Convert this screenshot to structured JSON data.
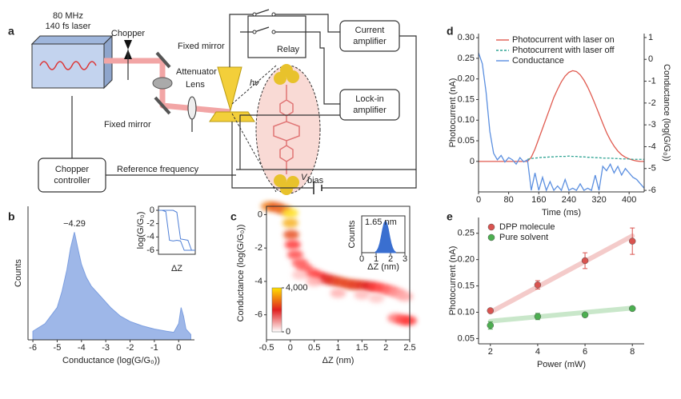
{
  "panels": [
    "a",
    "b",
    "c",
    "d",
    "e"
  ],
  "diagram": {
    "laser": [
      "80 MHz",
      "140 fs laser"
    ],
    "chopper": "Chopper",
    "fixed_mirror_top": "Fixed mirror",
    "attenuator": "Attenuator",
    "lens": "Lens",
    "fixed_mirror_bottom": "Fixed mirror",
    "relay": "Relay",
    "current_amplifier": [
      "Current",
      "amplifier"
    ],
    "lock_in_amplifier": [
      "Lock-in",
      "amplifier"
    ],
    "photon": "hν",
    "chopper_controller": [
      "Chopper",
      "controller"
    ],
    "reference": "Reference frequency",
    "vbias": [
      "V",
      "bias"
    ]
  },
  "chart_data": [
    {
      "type": "area",
      "xlabel": "Conductance (log(G/G₀))",
      "ylabel": "Counts",
      "annotation": "−4.29",
      "color": "#7d9fe0",
      "xlim": [
        -6.2,
        0.65
      ],
      "ylim": [
        0,
        1.24
      ],
      "xticks": [
        -6,
        -5,
        -4,
        -3,
        -2,
        -1,
        0
      ],
      "x": [
        -6,
        -5.5,
        -5,
        -4.8,
        -4.6,
        -4.45,
        -4.29,
        -4.15,
        -4,
        -3.8,
        -3.6,
        -3.2,
        -2.8,
        -2.4,
        -2,
        -1.5,
        -1,
        -0.5,
        -0.2,
        0,
        0.1,
        0.2,
        0.3,
        0.5
      ],
      "values": [
        0.08,
        0.15,
        0.3,
        0.45,
        0.65,
        0.85,
        1,
        0.85,
        0.7,
        0.58,
        0.5,
        0.4,
        0.3,
        0.22,
        0.17,
        0.13,
        0.1,
        0.08,
        0.07,
        0.15,
        0.3,
        0.22,
        0.1,
        0.05
      ]
    },
    {
      "type": "line",
      "xlabel": "ΔZ",
      "ylabel": "log(G/G₀)",
      "xlim": [
        0,
        10
      ],
      "ylim": [
        -6.6,
        0.6
      ],
      "yticks": [
        0,
        -2,
        -4,
        -6
      ],
      "x": [
        0,
        1,
        2,
        3,
        4,
        5,
        6,
        7,
        8,
        9,
        10
      ],
      "series": [
        {
          "name": "trace 1",
          "color": "#4f7fd6",
          "values": [
            0,
            0,
            -0.2,
            -4.5,
            -4.6,
            -4.5,
            -4.6,
            -6,
            -6,
            -6,
            -6
          ]
        },
        {
          "name": "trace 2",
          "color": "#4f7fd6",
          "values": [
            0,
            0,
            0,
            0,
            0,
            -0.3,
            -4.3,
            -4.4,
            -4.5,
            -6,
            -6
          ]
        }
      ]
    },
    {
      "type": "heatmap",
      "xlabel": "ΔZ (nm)",
      "ylabel": "Conductance (log(G/G₀))",
      "xlim": [
        -0.5,
        2.5
      ],
      "ylim": [
        -7.5,
        0.5
      ],
      "xticks": [
        -0.5,
        0,
        0.5,
        1,
        1.5,
        2,
        2.5
      ],
      "yticks": [
        0,
        -2,
        -4,
        -6
      ],
      "clim": [
        0,
        4000
      ],
      "cticks": [
        0,
        {
          "value": 4000,
          "label": "4,000"
        }
      ],
      "x": [
        -0.45,
        -0.3,
        -0.15,
        0,
        0,
        0.02,
        0.05,
        0.1,
        0.2,
        0.3,
        0.45,
        0.6,
        0.75,
        0.9,
        1.05,
        1.2,
        1.35,
        1.5,
        1.65,
        1.8,
        1.95,
        2.1,
        2.25,
        2.4,
        2.2,
        2.35,
        2.48,
        1.0,
        1.5,
        0.5,
        0.2,
        1.8
      ],
      "y": [
        0.5,
        0.45,
        0.3,
        0.1,
        -0.5,
        -1.2,
        -1.8,
        -2.4,
        -2.9,
        -3.2,
        -3.5,
        -3.7,
        -3.85,
        -3.95,
        -4.05,
        -4.15,
        -4.2,
        -4.25,
        -4.3,
        -4.35,
        -4.45,
        -4.55,
        -4.7,
        -4.9,
        -6.2,
        -6.3,
        -6.35,
        -4.7,
        -4.8,
        -4.0,
        -3.6,
        -5.0
      ],
      "values": [
        3000,
        2600,
        2800,
        4000,
        3500,
        2500,
        1800,
        1600,
        1500,
        1500,
        1600,
        1800,
        2000,
        2200,
        2400,
        2400,
        2300,
        2200,
        2000,
        1800,
        1600,
        1300,
        1000,
        800,
        1200,
        1600,
        1800,
        700,
        600,
        700,
        500,
        500
      ]
    },
    {
      "type": "area",
      "xlabel": "ΔZ (nm)",
      "ylabel": "Counts",
      "annotation": "1.65 nm",
      "color": "#3a6fd0",
      "xlim": [
        0,
        3
      ],
      "ylim": [
        0,
        1.15
      ],
      "xticks": [
        0,
        1,
        2,
        3
      ],
      "x": [
        0.95,
        1.05,
        1.15,
        1.25,
        1.35,
        1.45,
        1.55,
        1.65,
        1.75,
        1.85,
        1.95,
        2.05,
        2.15,
        2.25,
        2.35
      ],
      "values": [
        0.02,
        0.06,
        0.14,
        0.28,
        0.49,
        0.73,
        0.92,
        1,
        0.92,
        0.73,
        0.49,
        0.28,
        0.14,
        0.06,
        0.02
      ]
    },
    {
      "type": "line",
      "xlabel": "Time (ms)",
      "ylabel": "Photocurrent (nA)",
      "y2label": "Conductance (log(G/G₀))",
      "legend": "upper right",
      "xlim": [
        0,
        440
      ],
      "ylim": [
        -0.074,
        0.31
      ],
      "y2lim": [
        -6.07,
        1.18
      ],
      "xticks": [
        0,
        80,
        160,
        240,
        320,
        400
      ],
      "yticks": [
        0,
        0.05,
        {
          "value": 0.1,
          "label": "0.10"
        },
        0.15,
        {
          "value": 0.2,
          "label": "0.20"
        },
        0.25,
        {
          "value": 0.3,
          "label": "0.30"
        }
      ],
      "y2ticks": [
        1,
        0,
        -1,
        -2,
        -3,
        -4,
        -5,
        -6
      ],
      "x": [
        0,
        10,
        20,
        30,
        40,
        50,
        60,
        70,
        80,
        90,
        100,
        110,
        120,
        130,
        140,
        150,
        160,
        170,
        180,
        190,
        200,
        210,
        220,
        230,
        240,
        250,
        260,
        270,
        280,
        290,
        300,
        310,
        320,
        330,
        340,
        350,
        360,
        370,
        380,
        390,
        400,
        410,
        420,
        430,
        440
      ],
      "series": [
        {
          "name": "Photocurrent with laser on",
          "color": "#e05a4f",
          "values": [
            0,
            0,
            0,
            0,
            0,
            0,
            0,
            0,
            0,
            0,
            0,
            0,
            0,
            0,
            0.01,
            0.03,
            0.055,
            0.08,
            0.105,
            0.13,
            0.155,
            0.175,
            0.193,
            0.207,
            0.216,
            0.22,
            0.218,
            0.21,
            0.197,
            0.18,
            0.16,
            0.138,
            0.115,
            0.092,
            0.07,
            0.052,
            0.037,
            0.025,
            0.016,
            0.01,
            0.006,
            0.003,
            0.001,
            0,
            0
          ]
        },
        {
          "name": "Photocurrent with laser off",
          "color": "#2fa393",
          "dash": true,
          "values": [
            null,
            null,
            null,
            null,
            null,
            null,
            null,
            null,
            null,
            null,
            null,
            null,
            null,
            0.005,
            0.007,
            0.008,
            0.009,
            0.01,
            0.01,
            0.011,
            0.011,
            0.012,
            0.012,
            0.012,
            0.013,
            0.012,
            0.012,
            0.011,
            0.011,
            0.01,
            0.01,
            0.009,
            0.009,
            0.008,
            0.008,
            0.008,
            0.007,
            0.007,
            0.006,
            0.006,
            0.006,
            0.005,
            0.005,
            0.005,
            0.005
          ]
        },
        {
          "name": "Conductance",
          "color": "#5b8fe0",
          "axis": "y2",
          "values": [
            0.3,
            -0.2,
            -1.5,
            -3.3,
            -4.3,
            -4.6,
            -4.4,
            -4.7,
            -4.5,
            -4.6,
            -4.8,
            -4.5,
            -4.7,
            -4.6,
            -6,
            -5.2,
            -6,
            -5.4,
            -6,
            -5.6,
            -6,
            -5.8,
            -6,
            -5.5,
            -6,
            -5.9,
            -6,
            -5.7,
            -6,
            -5.9,
            -6,
            -5.3,
            -6,
            -4.9,
            -5.1,
            -4.8,
            -5.2,
            -4.9,
            -5.3,
            -5.0,
            -5.2,
            -5.4,
            -5.5,
            -5.7,
            -5.9
          ]
        }
      ]
    },
    {
      "type": "scatter",
      "xlabel": "Power (mW)",
      "ylabel": "Photocurrent (nA)",
      "legend": "upper left",
      "xlim": [
        1.5,
        8.5
      ],
      "ylim": [
        0.04,
        0.28
      ],
      "xticks": [
        2,
        4,
        6,
        8
      ],
      "yticks": [
        0.05,
        {
          "value": 0.1,
          "label": "0.10"
        },
        0.15,
        {
          "value": 0.2,
          "label": "0.20"
        },
        0.25
      ],
      "x": [
        2,
        4,
        6,
        8
      ],
      "series": [
        {
          "name": "DPP molecule",
          "color": "#d9534f",
          "values": [
            0.103,
            0.152,
            0.198,
            0.235
          ],
          "errors": [
            0.003,
            0.008,
            0.015,
            0.025
          ],
          "fit": {
            "x": [
              2,
              8
            ],
            "values": [
              0.1,
              0.245
            ]
          }
        },
        {
          "name": "Pure solvent",
          "color": "#4caf50",
          "values": [
            0.075,
            0.092,
            0.095,
            0.107
          ],
          "errors": [
            0.007,
            0.006,
            0.003,
            0.002
          ],
          "fit": {
            "x": [
              2,
              8
            ],
            "values": [
              0.083,
              0.108
            ]
          }
        }
      ]
    }
  ]
}
